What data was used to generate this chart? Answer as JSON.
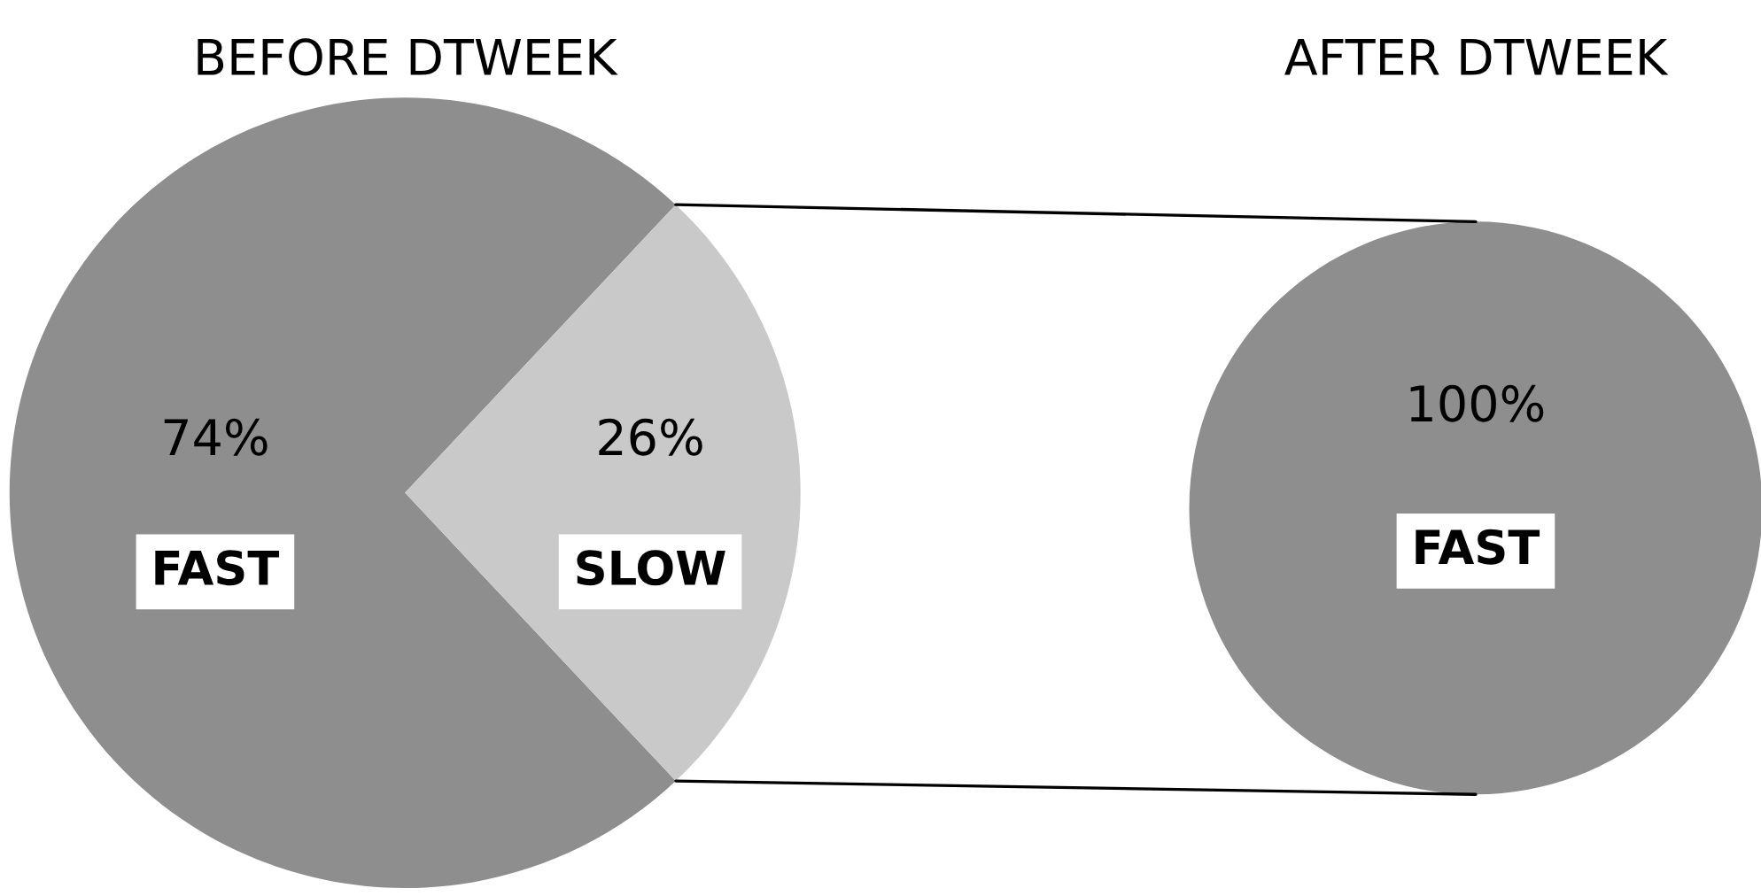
{
  "chart_data": [
    {
      "type": "pie",
      "title": "BEFORE DTWEEK",
      "categories": [
        "FAST",
        "SLOW"
      ],
      "values": [
        74,
        26
      ],
      "colors": [
        "#8e8e8e",
        "#c9c9c9"
      ],
      "value_labels": [
        "74%",
        "26%"
      ]
    },
    {
      "type": "pie",
      "title": "AFTER DTWEEK",
      "categories": [
        "FAST"
      ],
      "values": [
        100
      ],
      "colors": [
        "#8e8e8e"
      ],
      "value_labels": [
        "100%"
      ]
    }
  ]
}
